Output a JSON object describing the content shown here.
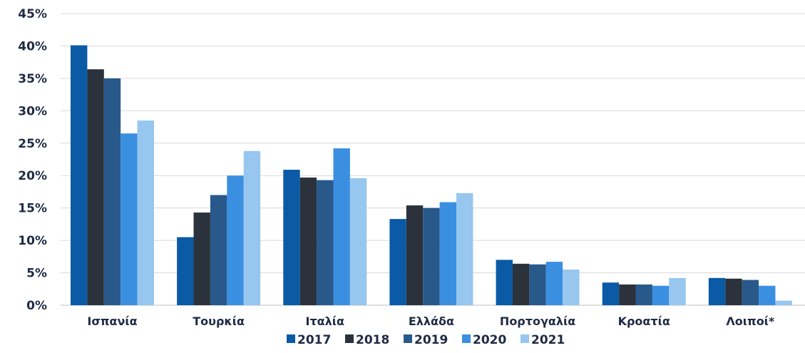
{
  "chart_data": {
    "type": "bar",
    "categories": [
      "Ισπανία",
      "Τουρκία",
      "Ιταλία",
      "Ελλάδα",
      "Πορτογαλία",
      "Κροατία",
      "Λοιποί*"
    ],
    "series": [
      {
        "name": "2017",
        "color": "#0a5aa6",
        "values": [
          40.1,
          10.5,
          20.9,
          13.3,
          7.0,
          3.5,
          4.2
        ]
      },
      {
        "name": "2018",
        "color": "#2b323b",
        "values": [
          36.4,
          14.3,
          19.7,
          15.4,
          6.4,
          3.2,
          4.1
        ]
      },
      {
        "name": "2019",
        "color": "#28598a",
        "values": [
          35.0,
          17.0,
          19.3,
          15.0,
          6.3,
          3.2,
          3.9
        ]
      },
      {
        "name": "2020",
        "color": "#3b8fe0",
        "values": [
          26.5,
          20.0,
          24.2,
          15.9,
          6.7,
          3.0,
          3.0
        ]
      },
      {
        "name": "2021",
        "color": "#97c6ef",
        "values": [
          28.5,
          23.8,
          19.6,
          17.3,
          5.5,
          4.2,
          0.7
        ]
      }
    ],
    "yticks": [
      "0%",
      "5%",
      "10%",
      "15%",
      "20%",
      "25%",
      "30%",
      "35%",
      "40%",
      "45%"
    ],
    "ylim": [
      0,
      45
    ],
    "grid": true,
    "legend_position": "bottom",
    "title": "",
    "xlabel": "",
    "ylabel": ""
  }
}
